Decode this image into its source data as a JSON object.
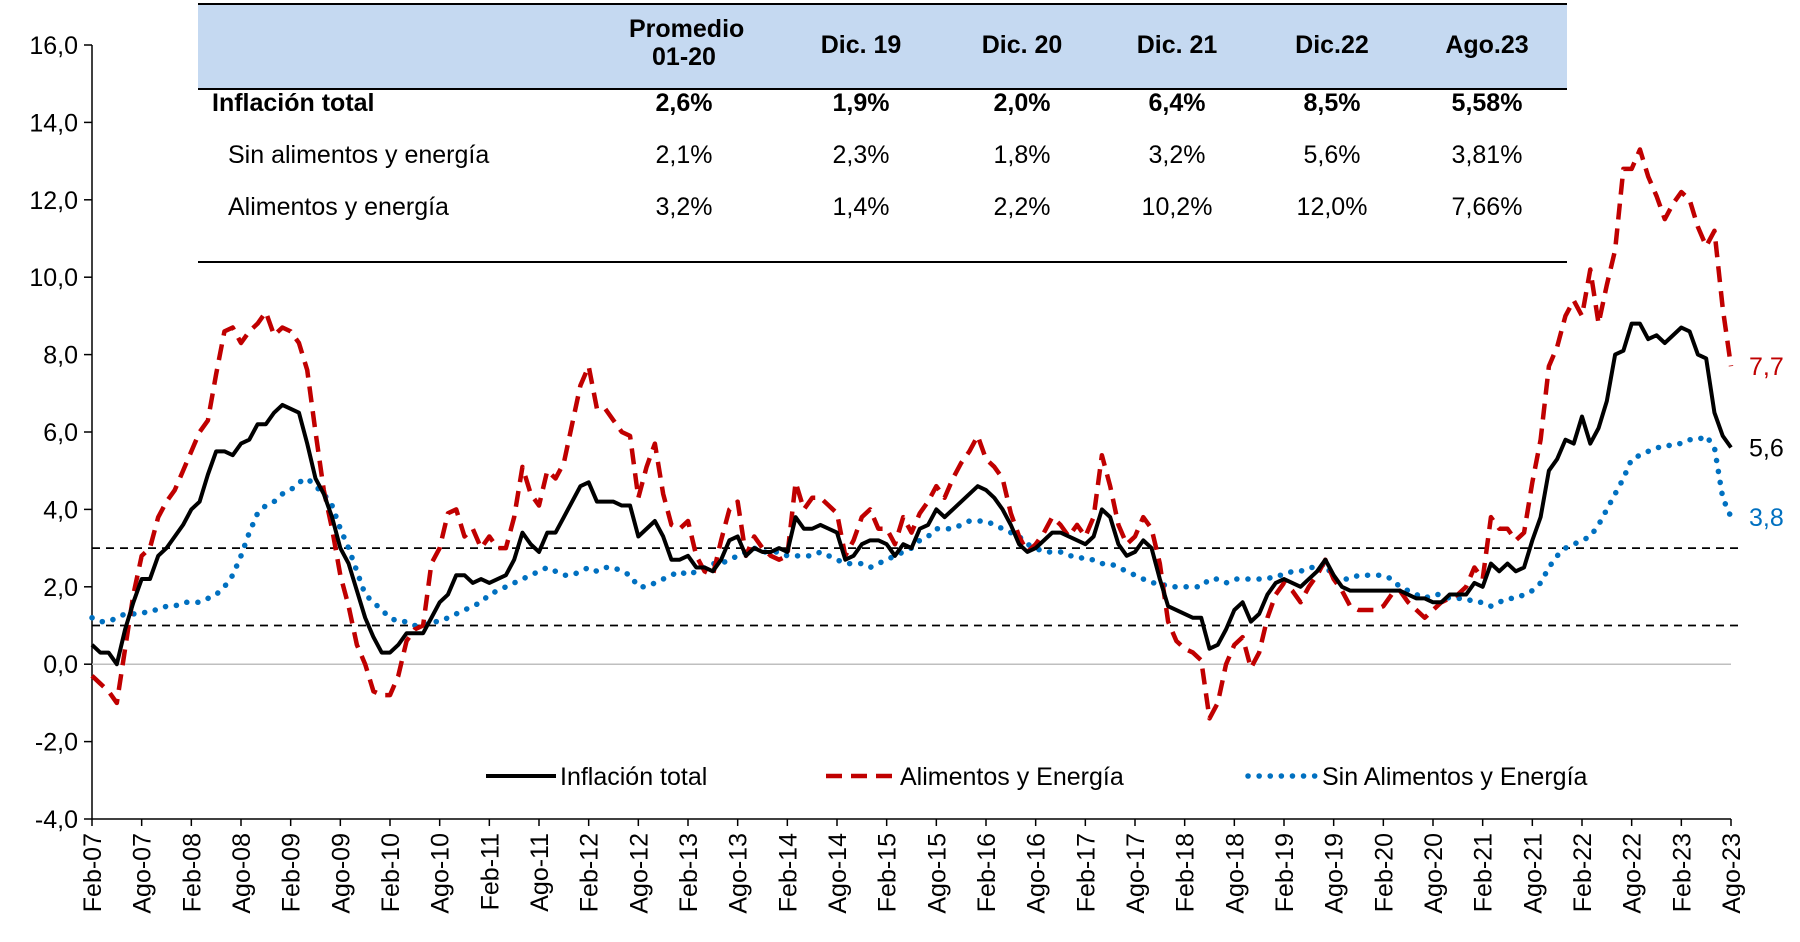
{
  "chart_data": {
    "type": "line",
    "categories": [
      "Feb-07",
      null,
      null,
      null,
      null,
      null,
      "Ago-07",
      null,
      null,
      null,
      null,
      null,
      "Feb-08",
      null,
      null,
      null,
      null,
      null,
      "Ago-08",
      null,
      null,
      null,
      null,
      null,
      "Feb-09",
      null,
      null,
      null,
      null,
      null,
      "Ago-09",
      null,
      null,
      null,
      null,
      null,
      "Feb-10",
      null,
      null,
      null,
      null,
      null,
      "Ago-10",
      null,
      null,
      null,
      null,
      null,
      "Feb-11",
      null,
      null,
      null,
      null,
      null,
      "Ago-11",
      null,
      null,
      null,
      null,
      null,
      "Feb-12",
      null,
      null,
      null,
      null,
      null,
      "Ago-12",
      null,
      null,
      null,
      null,
      null,
      "Feb-13",
      null,
      null,
      null,
      null,
      null,
      "Ago-13",
      null,
      null,
      null,
      null,
      null,
      "Feb-14",
      null,
      null,
      null,
      null,
      null,
      "Ago-14",
      null,
      null,
      null,
      null,
      null,
      "Feb-15",
      null,
      null,
      null,
      null,
      null,
      "Ago-15",
      null,
      null,
      null,
      null,
      null,
      "Feb-16",
      null,
      null,
      null,
      null,
      null,
      "Ago-16",
      null,
      null,
      null,
      null,
      null,
      "Feb-17",
      null,
      null,
      null,
      null,
      null,
      "Ago-17",
      null,
      null,
      null,
      null,
      null,
      "Feb-18",
      null,
      null,
      null,
      null,
      null,
      "Ago-18",
      null,
      null,
      null,
      null,
      null,
      "Feb-19",
      null,
      null,
      null,
      null,
      null,
      "Ago-19",
      null,
      null,
      null,
      null,
      null,
      "Feb-20",
      null,
      null,
      null,
      null,
      null,
      "Ago-20",
      null,
      null,
      null,
      null,
      null,
      "Feb-21",
      null,
      null,
      null,
      null,
      null,
      "Ago-21",
      null,
      null,
      null,
      null,
      null,
      "Feb-22",
      null,
      null,
      null,
      null,
      null,
      "Ago-22",
      null,
      null,
      null,
      null,
      null,
      "Feb-23",
      null,
      null,
      null,
      null,
      null,
      "Ago-23"
    ],
    "series": [
      {
        "name": "Inflación total",
        "color": "#000000",
        "style": "solid",
        "end_label": "5,6",
        "values": [
          0.5,
          0.3,
          0.3,
          0.0,
          0.9,
          1.6,
          2.2,
          2.2,
          2.8,
          3.0,
          3.3,
          3.6,
          4.0,
          4.2,
          4.9,
          5.5,
          5.5,
          5.4,
          5.7,
          5.8,
          6.2,
          6.2,
          6.5,
          6.7,
          6.6,
          6.5,
          5.7,
          4.8,
          4.4,
          3.8,
          3.0,
          2.6,
          1.9,
          1.2,
          0.7,
          0.3,
          0.3,
          0.5,
          0.8,
          0.8,
          0.8,
          1.2,
          1.6,
          1.8,
          2.3,
          2.3,
          2.1,
          2.2,
          2.1,
          2.2,
          2.3,
          2.7,
          3.4,
          3.1,
          2.9,
          3.4,
          3.4,
          3.8,
          4.2,
          4.6,
          4.7,
          4.2,
          4.2,
          4.2,
          4.1,
          4.1,
          3.3,
          3.5,
          3.7,
          3.3,
          2.7,
          2.7,
          2.8,
          2.5,
          2.5,
          2.4,
          2.7,
          3.2,
          3.3,
          2.8,
          3.0,
          2.9,
          2.9,
          3.0,
          2.9,
          3.8,
          3.5,
          3.5,
          3.6,
          3.5,
          3.4,
          2.7,
          2.8,
          3.1,
          3.2,
          3.2,
          3.1,
          2.8,
          3.1,
          3.0,
          3.5,
          3.6,
          4.0,
          3.8,
          4.0,
          4.2,
          4.4,
          4.6,
          4.5,
          4.3,
          4.0,
          3.6,
          3.1,
          2.9,
          3.0,
          3.2,
          3.4,
          3.4,
          3.3,
          3.2,
          3.1,
          3.3,
          4.0,
          3.8,
          3.1,
          2.8,
          2.9,
          3.2,
          3.0,
          2.2,
          1.5,
          1.4,
          1.3,
          1.2,
          1.2,
          0.4,
          0.5,
          0.9,
          1.4,
          1.6,
          1.1,
          1.3,
          1.8,
          2.1,
          2.2,
          2.1,
          2.0,
          2.2,
          2.4,
          2.7,
          2.3,
          2.0,
          1.9,
          1.9,
          1.9,
          1.9,
          1.9,
          1.9,
          1.9,
          1.8,
          1.7,
          1.7,
          1.6,
          1.6,
          1.8,
          1.8,
          1.8,
          2.1,
          2.0,
          2.6,
          2.4,
          2.6,
          2.4,
          2.5,
          3.2,
          3.8,
          5.0,
          5.3,
          5.8,
          5.7,
          6.4,
          5.7,
          6.1,
          6.8,
          8.0,
          8.1,
          8.8,
          8.8,
          8.4,
          8.5,
          8.3,
          8.5,
          8.7,
          8.6,
          8.0,
          7.9,
          6.5,
          5.9,
          5.6
        ]
      },
      {
        "name": "Alimentos y Energía",
        "color": "#c00000",
        "style": "dashed",
        "end_label": "7,7",
        "values": [
          -0.3,
          -0.5,
          -0.7,
          -1.0,
          0.4,
          1.8,
          2.8,
          3.0,
          3.8,
          4.2,
          4.5,
          5.0,
          5.5,
          6.0,
          6.3,
          7.5,
          8.6,
          8.7,
          8.3,
          8.6,
          8.8,
          9.1,
          8.5,
          8.7,
          8.6,
          8.3,
          7.6,
          6.0,
          4.5,
          3.5,
          2.3,
          1.5,
          0.5,
          0.0,
          -0.7,
          -0.8,
          -0.8,
          -0.3,
          0.6,
          0.9,
          1.0,
          2.6,
          3.0,
          3.9,
          4.0,
          3.3,
          3.5,
          3.0,
          3.3,
          3.0,
          3.0,
          3.8,
          5.1,
          4.4,
          4.1,
          5.0,
          4.8,
          5.2,
          6.2,
          7.2,
          7.7,
          6.6,
          6.6,
          6.3,
          6.0,
          5.9,
          4.3,
          5.1,
          5.7,
          4.4,
          3.6,
          3.5,
          3.7,
          2.8,
          2.4,
          2.3,
          3.2,
          4.0,
          4.2,
          2.8,
          3.3,
          3.0,
          2.8,
          2.7,
          2.8,
          4.7,
          4.0,
          4.3,
          4.3,
          4.1,
          3.9,
          2.8,
          3.2,
          3.8,
          4.0,
          3.5,
          3.5,
          3.1,
          3.8,
          3.4,
          3.9,
          4.2,
          4.6,
          4.3,
          4.8,
          5.2,
          5.5,
          5.9,
          5.3,
          5.1,
          4.8,
          3.9,
          3.3,
          2.9,
          3.1,
          3.4,
          3.8,
          3.6,
          3.3,
          3.6,
          3.3,
          3.8,
          5.4,
          4.6,
          3.6,
          3.1,
          3.3,
          3.8,
          3.5,
          2.6,
          1.1,
          0.6,
          0.4,
          0.3,
          0.1,
          -1.4,
          -1.0,
          0.0,
          0.5,
          0.7,
          -0.1,
          0.3,
          1.2,
          1.8,
          2.1,
          1.9,
          1.6,
          2.0,
          2.3,
          2.7,
          2.2,
          1.9,
          1.5,
          1.4,
          1.4,
          1.4,
          1.5,
          1.8,
          1.9,
          1.6,
          1.4,
          1.2,
          1.4,
          1.6,
          1.7,
          1.8,
          2.0,
          2.5,
          2.2,
          3.8,
          3.5,
          3.5,
          3.2,
          3.4,
          4.7,
          5.8,
          7.7,
          8.2,
          9.0,
          9.4,
          9.0,
          10.2,
          8.8,
          9.8,
          10.7,
          12.8,
          12.8,
          13.3,
          12.6,
          12.1,
          11.5,
          11.9,
          12.2,
          12.0,
          11.3,
          10.8,
          11.2,
          9.2,
          7.7
        ]
      },
      {
        "name": "Sin Alimentos y Energía",
        "color": "#0070c0",
        "style": "dotted",
        "end_label": "3,8",
        "values": [
          1.2,
          1.1,
          1.1,
          1.2,
          1.3,
          1.3,
          1.3,
          1.4,
          1.4,
          1.5,
          1.5,
          1.6,
          1.6,
          1.6,
          1.7,
          1.8,
          2.0,
          2.3,
          2.8,
          3.4,
          3.9,
          4.1,
          4.2,
          4.4,
          4.5,
          4.7,
          4.8,
          4.6,
          4.4,
          4.1,
          3.5,
          3.0,
          2.4,
          1.8,
          1.6,
          1.4,
          1.2,
          1.1,
          1.1,
          1.0,
          1.0,
          1.1,
          1.1,
          1.2,
          1.3,
          1.4,
          1.5,
          1.6,
          1.8,
          1.9,
          2.0,
          2.1,
          2.2,
          2.3,
          2.4,
          2.5,
          2.4,
          2.3,
          2.3,
          2.4,
          2.5,
          2.4,
          2.5,
          2.5,
          2.4,
          2.3,
          2.0,
          2.0,
          2.1,
          2.2,
          2.3,
          2.4,
          2.3,
          2.4,
          2.5,
          2.6,
          2.6,
          2.7,
          2.8,
          2.9,
          3.0,
          2.9,
          2.9,
          2.9,
          2.8,
          2.8,
          2.8,
          2.8,
          2.9,
          2.8,
          2.7,
          2.6,
          2.6,
          2.6,
          2.5,
          2.6,
          2.7,
          2.8,
          2.9,
          3.0,
          3.2,
          3.3,
          3.5,
          3.5,
          3.5,
          3.6,
          3.7,
          3.7,
          3.7,
          3.6,
          3.5,
          3.4,
          3.3,
          3.1,
          3.0,
          2.9,
          2.9,
          2.9,
          2.8,
          2.8,
          2.7,
          2.7,
          2.6,
          2.6,
          2.5,
          2.4,
          2.3,
          2.2,
          2.1,
          2.1,
          2.0,
          2.0,
          2.0,
          2.0,
          2.0,
          2.2,
          2.2,
          2.1,
          2.2,
          2.2,
          2.2,
          2.2,
          2.2,
          2.3,
          2.3,
          2.4,
          2.4,
          2.5,
          2.5,
          2.6,
          2.2,
          2.2,
          2.2,
          2.3,
          2.3,
          2.3,
          2.3,
          2.2,
          2.0,
          1.9,
          1.8,
          1.7,
          1.8,
          1.8,
          1.7,
          1.7,
          1.7,
          1.6,
          1.6,
          1.5,
          1.6,
          1.7,
          1.7,
          1.8,
          1.9,
          2.1,
          2.5,
          2.8,
          3.0,
          3.1,
          3.2,
          3.3,
          3.6,
          4.0,
          4.4,
          4.8,
          5.3,
          5.4,
          5.5,
          5.6,
          5.6,
          5.7,
          5.7,
          5.8,
          5.8,
          5.9,
          5.6,
          4.3,
          3.8
        ]
      }
    ],
    "ylim": [
      -4,
      16
    ],
    "yticks": [
      {
        "value": -4,
        "label": "-4,0"
      },
      {
        "value": -2,
        "label": "-2,0"
      },
      {
        "value": 0,
        "label": "0,0"
      },
      {
        "value": 2,
        "label": "2,0"
      },
      {
        "value": 4,
        "label": "4,0"
      },
      {
        "value": 6,
        "label": "6,0"
      },
      {
        "value": 8,
        "label": "8,0"
      },
      {
        "value": 10,
        "label": "10,0"
      },
      {
        "value": 12,
        "label": "12,0"
      },
      {
        "value": 14,
        "label": "14,0"
      },
      {
        "value": 16,
        "label": "16,0"
      }
    ],
    "reference_lines": [
      3,
      1
    ],
    "grid": false,
    "legend": "bottom"
  },
  "table": {
    "columns": [
      "Promedio 01-20",
      "Dic. 19",
      "Dic. 20",
      "Dic. 21",
      "Dic.22",
      "Ago.23"
    ],
    "rows": [
      [
        "Inflación total",
        "2,6%",
        "1,9%",
        "2,0%",
        "6,4%",
        "8,5%",
        "5,58%"
      ],
      [
        "Sin alimentos y energía",
        "2,1%",
        "2,3%",
        "1,8%",
        "3,2%",
        "5,6%",
        "3,81%"
      ],
      [
        "Alimentos y energía",
        "3,2%",
        "1,4%",
        "2,2%",
        "10,2%",
        "12,0%",
        "7,66%"
      ]
    ]
  }
}
